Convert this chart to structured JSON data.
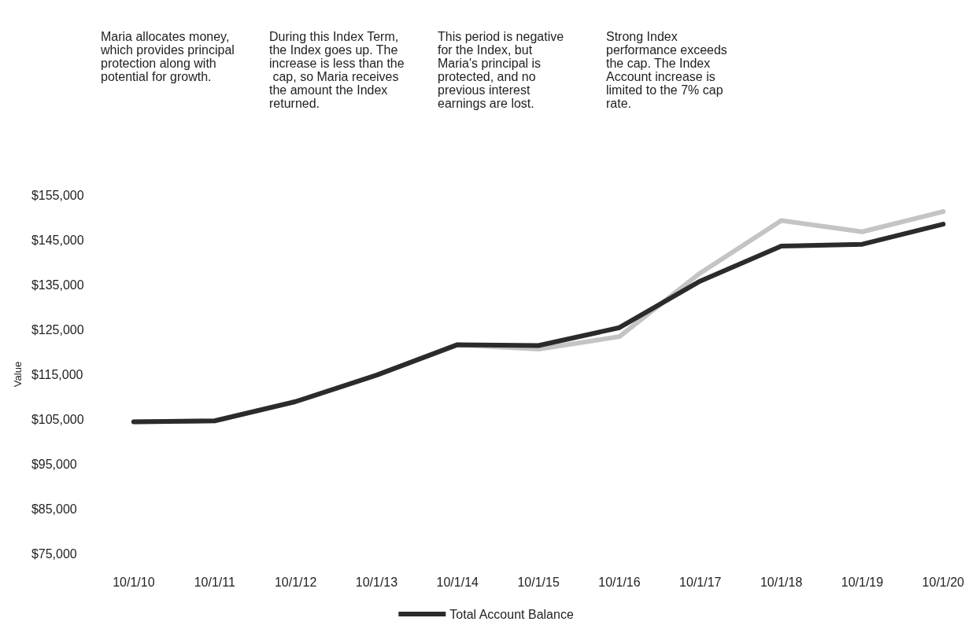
{
  "chart_data": {
    "type": "line",
    "annotations": [
      "Maria allocates money, which provides principal protection along with potential for growth.",
      "During this Index Term, the Index goes up. The increase is less than the cap, so Maria receives the amount the Index returned.",
      "This period is negative for the Index, but Maria's principal is protected, and no previous interest earnings are lost.",
      "Strong Index performance exceeds the cap. The Index Account increase is limited to the 7% cap rate."
    ],
    "ylabel": "Value",
    "categories": [
      "10/1/10",
      "10/1/11",
      "10/1/12",
      "10/1/13",
      "10/1/14",
      "10/1/15",
      "10/1/16",
      "10/1/17",
      "10/1/18",
      "10/1/19",
      "10/1/20"
    ],
    "series": [
      {
        "name": "Total Account Balance",
        "color": "#2b2b2b",
        "values": [
          104400,
          104600,
          108900,
          114800,
          121600,
          121400,
          125400,
          135800,
          143600,
          144000,
          148500
        ]
      },
      {
        "color": "#c4c4c4",
        "values": [
          104400,
          104600,
          108900,
          114800,
          121600,
          120600,
          123400,
          137600,
          149300,
          146800,
          151300
        ]
      }
    ],
    "ylim": [
      75000,
      155000
    ],
    "yticks": [
      {
        "value": 75000,
        "label": "$75,000"
      },
      {
        "value": 85000,
        "label": "$85,000"
      },
      {
        "value": 95000,
        "label": "$95,000"
      },
      {
        "value": 105000,
        "label": "$105,000"
      },
      {
        "value": 115000,
        "label": "$115,000"
      },
      {
        "value": 125000,
        "label": "$125,000"
      },
      {
        "value": 135000,
        "label": "$135,000"
      },
      {
        "value": 145000,
        "label": "$145,000"
      },
      {
        "value": 155000,
        "label": "$155,000"
      }
    ],
    "legend": "bottom"
  }
}
